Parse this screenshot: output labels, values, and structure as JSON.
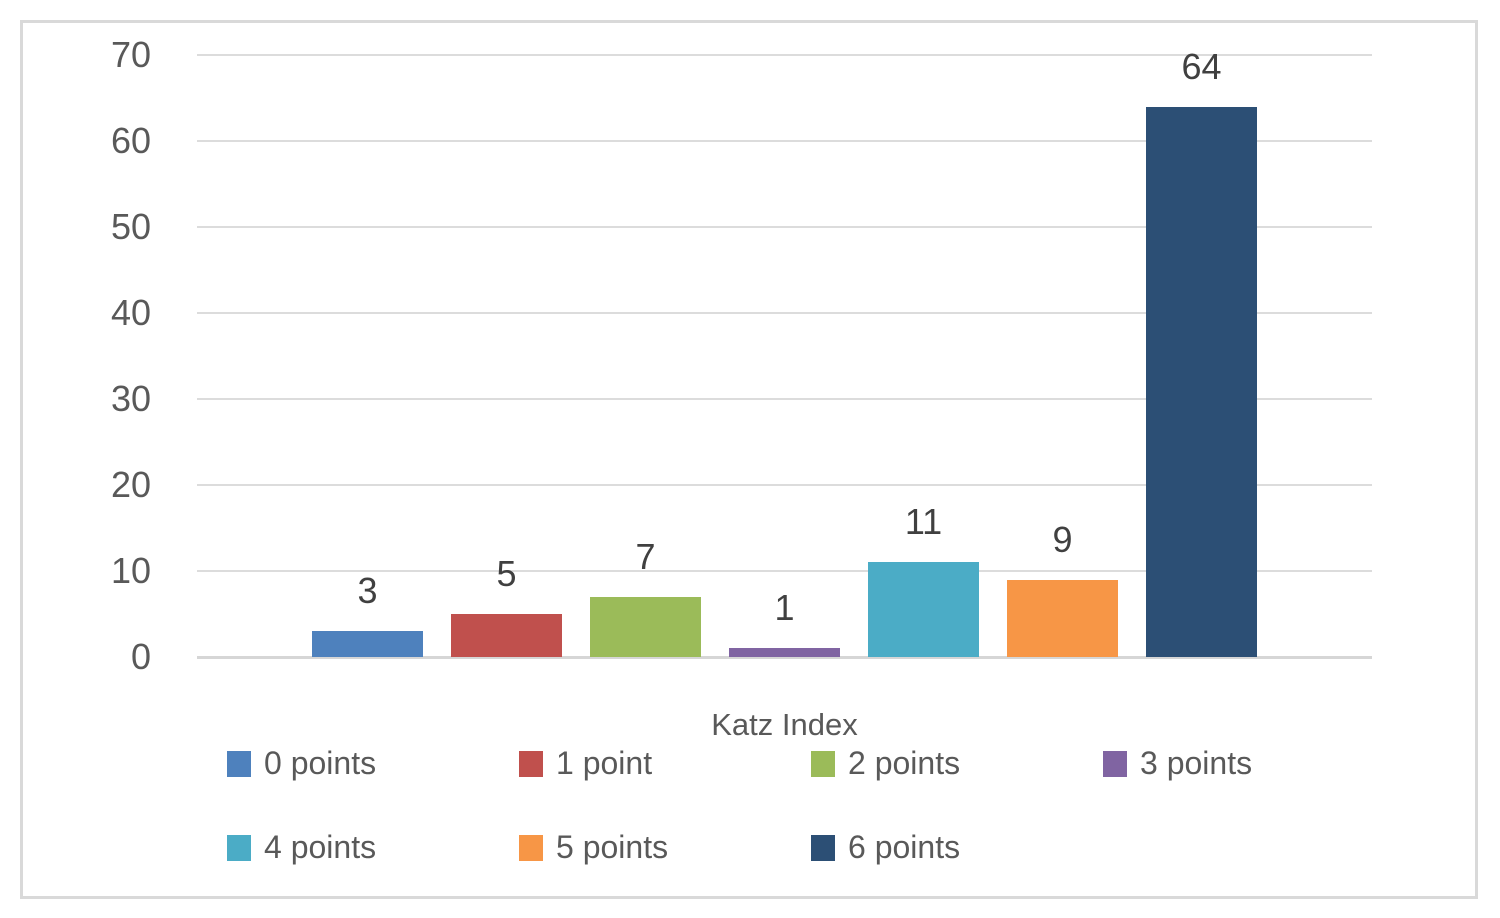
{
  "chart_data": {
    "type": "bar",
    "title": "",
    "xlabel": "Katz Index",
    "ylabel": "",
    "ylim": [
      0,
      70
    ],
    "yticks": [
      0,
      10,
      20,
      30,
      40,
      50,
      60,
      70
    ],
    "grid": true,
    "legend_position": "bottom",
    "categories": [
      "0 points",
      "1 point",
      "2 points",
      "3 points",
      "4 points",
      "5 points",
      "6 points"
    ],
    "values": [
      3,
      5,
      7,
      1,
      11,
      9,
      64
    ],
    "data_labels": [
      "3",
      "5",
      "7",
      "1",
      "11",
      "9",
      "64"
    ],
    "bar_colors": [
      "#4E81BD",
      "#C0504D",
      "#9BBB59",
      "#8064A2",
      "#4BACC6",
      "#F79646",
      "#2C4F75"
    ]
  },
  "legend": {
    "rows": [
      [
        {
          "label": "0 points",
          "color": "#4E81BD"
        },
        {
          "label": "1 point",
          "color": "#C0504D"
        },
        {
          "label": "2 points",
          "color": "#9BBB59"
        },
        {
          "label": "3 points",
          "color": "#8064A2"
        }
      ],
      [
        {
          "label": "4 points",
          "color": "#4BACC6"
        },
        {
          "label": "5 points",
          "color": "#F79646"
        },
        {
          "label": "6 points",
          "color": "#2C4F75"
        }
      ]
    ]
  },
  "style": {
    "background": "#FFFFFF",
    "figure_border_color": "#D9D9D9",
    "grid_color": "#DCDCDC",
    "axis_text_color": "#595959",
    "data_label_color": "#404040",
    "legend_text_color": "#595959"
  }
}
